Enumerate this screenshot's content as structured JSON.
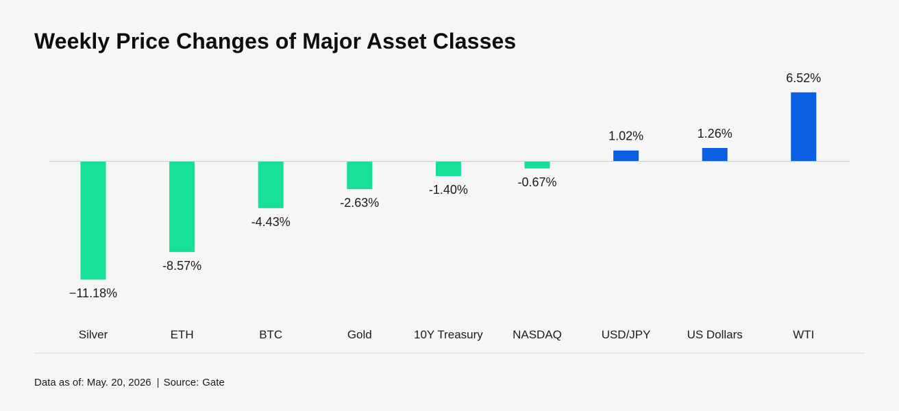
{
  "title": "Weekly Price Changes of Major Asset Classes",
  "footer": {
    "date_text": "Data as of: May. 20, 2026",
    "separator": "|",
    "source_label": "Source:",
    "source_value": "Gate"
  },
  "colors": {
    "negative": "#16e196",
    "positive": "#0b5fe3",
    "baseline": "#c9c9cc",
    "label_text": "#1a1a1a"
  },
  "chart_data": {
    "type": "bar",
    "title": "Weekly Price Changes of Major Asset Classes",
    "xlabel": "",
    "ylabel": "",
    "grid": false,
    "legend": "none",
    "categories": [
      "Silver",
      "ETH",
      "BTC",
      "Gold",
      "10Y Treasury",
      "NASDAQ",
      "USD/JPY",
      "US Dollars",
      "WTI"
    ],
    "values": [
      -11.18,
      -8.57,
      -4.43,
      -2.63,
      -1.4,
      -0.67,
      1.02,
      1.26,
      6.52
    ],
    "data_labels": [
      "−11.18%",
      "-8.57%",
      "-4.43%",
      "-2.63%",
      "-1.40%",
      "-0.67%",
      "1.02%",
      "1.26%",
      "6.52%"
    ]
  }
}
